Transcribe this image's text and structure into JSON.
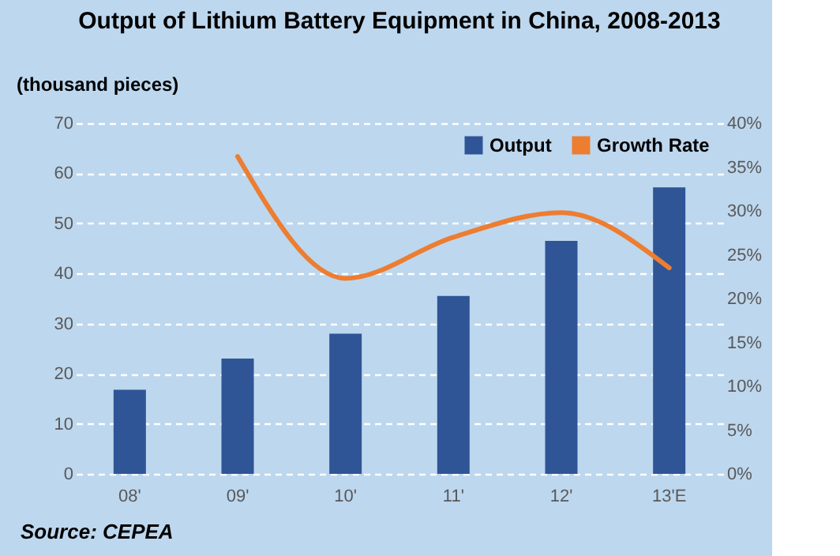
{
  "chart_data": {
    "type": "bar",
    "title": "Output of Lithium Battery Equipment in China, 2008-2013",
    "ylabel": "(thousand pieces)",
    "categories": [
      "08'",
      "09'",
      "10'",
      "11'",
      "12'",
      "13'E"
    ],
    "series": [
      {
        "name": "Output",
        "color": "#2f5597",
        "values": [
          16.8,
          23,
          28,
          35.5,
          46.5,
          57.2
        ]
      },
      {
        "name": "Growth Rate",
        "type": "line",
        "axis": "y2",
        "color": "#ed7d31",
        "values": [
          null,
          36.2,
          22.3,
          27,
          29.8,
          23.5
        ]
      }
    ],
    "ylim": [
      0,
      70
    ],
    "yticks": [
      0,
      10,
      20,
      30,
      40,
      50,
      60,
      70
    ],
    "y2lim": [
      0,
      40
    ],
    "y2ticks": [
      {
        "value": 0,
        "label": "0%"
      },
      {
        "value": 5,
        "label": "5%"
      },
      {
        "value": 10,
        "label": "10%"
      },
      {
        "value": 15,
        "label": "15%"
      },
      {
        "value": 20,
        "label": "20%"
      },
      {
        "value": 25,
        "label": "25%"
      },
      {
        "value": 30,
        "label": "30%"
      },
      {
        "value": 35,
        "label": "35%"
      },
      {
        "value": 40,
        "label": "40%"
      }
    ],
    "grid": "y",
    "legend": "top right",
    "annotations": [
      "Source: CEPEA"
    ]
  }
}
